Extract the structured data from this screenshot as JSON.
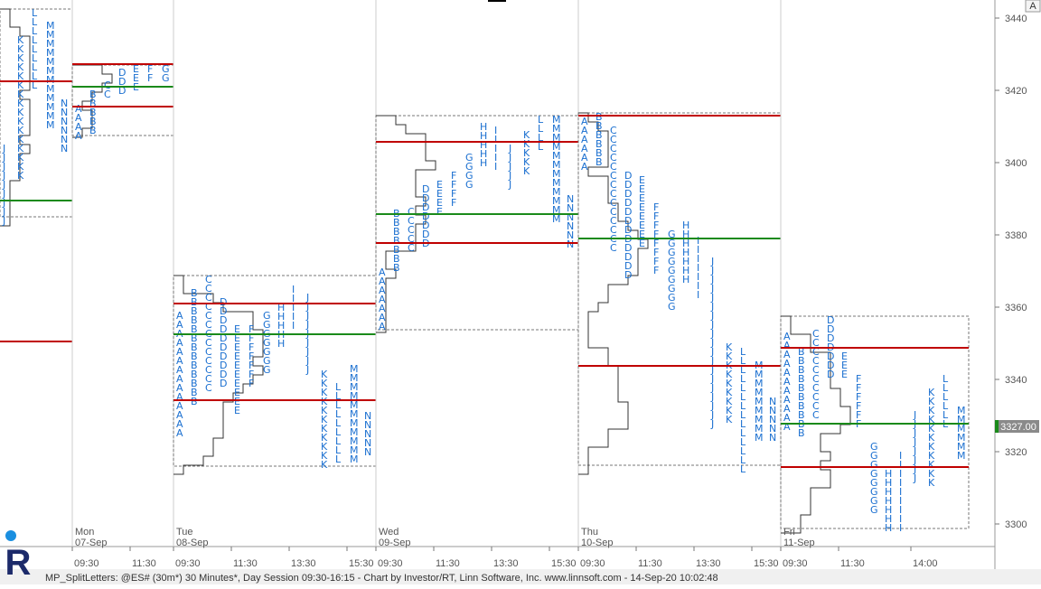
{
  "chart_data": {
    "type": "market-profile",
    "ylim": [
      3293.75,
      3445
    ],
    "yticks": [
      3300,
      3320,
      3340,
      3360,
      3380,
      3400,
      3420,
      3440
    ],
    "last_price": {
      "value": 3327,
      "label": "3327.00"
    },
    "letter_color": "#1a6fd0",
    "value_area_color": "#c00000",
    "poc_color": "#1a8a1a",
    "button": "A",
    "logo": "R",
    "footer": "MP_SplitLetters: @ES# (30m*) 30 Minutes*, Day Session 09:30-16:15 - Chart by Investor/RT, Linn Software, Inc. www.linnsoft.com - 14-Sep-20 10:02:48",
    "days": [
      {
        "letters": [
          {
            "letter": "J",
            "high": 3405,
            "low": 3385
          },
          {
            "letter": "K",
            "high": 3435,
            "low": 3397.5
          },
          {
            "letter": "L",
            "high": 3442.5,
            "low": 3421
          },
          {
            "letter": "M",
            "high": 3439,
            "low": 3410
          },
          {
            "letter": "N",
            "high": 3417.5,
            "low": 3405
          }
        ],
        "vah": 3422.5,
        "poc": 3389.5,
        "val": 3350.5
      },
      {
        "day": "Mon",
        "date": "07-Sep",
        "times": [
          "09:30",
          "11:30"
        ],
        "letters": [
          {
            "letter": "A",
            "high": 3416,
            "low": 3407.5
          },
          {
            "letter": "B",
            "high": 3420,
            "low": 3410
          },
          {
            "letter": "C",
            "high": 3422.5,
            "low": 3419
          },
          {
            "letter": "D",
            "high": 3426,
            "low": 3420
          },
          {
            "letter": "E",
            "high": 3427,
            "low": 3421
          },
          {
            "letter": "F",
            "high": 3427,
            "low": 3424
          },
          {
            "letter": "G",
            "high": 3427,
            "low": 3422.5
          }
        ],
        "vah": 3427.25,
        "poc": 3421,
        "val": 3415.5
      },
      {
        "day": "Tue",
        "date": "08-Sep",
        "times": [
          "09:30",
          "11:30",
          "13:30",
          "15:30"
        ],
        "letters": [
          {
            "letter": "A",
            "high": 3358.75,
            "low": 3326.25
          },
          {
            "letter": "B",
            "high": 3365,
            "low": 3335
          },
          {
            "letter": "C",
            "high": 3368.75,
            "low": 3338.75
          },
          {
            "letter": "D",
            "high": 3362.5,
            "low": 3340
          },
          {
            "letter": "E",
            "high": 3355,
            "low": 3331.25
          },
          {
            "letter": "F",
            "high": 3355,
            "low": 3340
          },
          {
            "letter": "G",
            "high": 3358.75,
            "low": 3343.75
          },
          {
            "letter": "H",
            "high": 3361,
            "low": 3348.75
          },
          {
            "letter": "I",
            "high": 3366,
            "low": 3355
          },
          {
            "letter": "J",
            "high": 3363.75,
            "low": 3342.5
          },
          {
            "letter": "K",
            "high": 3342.5,
            "low": 3316
          },
          {
            "letter": "L",
            "high": 3339,
            "low": 3317.5
          },
          {
            "letter": "M",
            "high": 3344,
            "low": 3317.5
          },
          {
            "letter": "N",
            "high": 3331,
            "low": 3321
          }
        ],
        "vah": 3361,
        "poc": 3352.5,
        "val": 3334.25
      },
      {
        "day": "Wed",
        "date": "09-Sep",
        "times": [
          "09:30",
          "11:30",
          "13:30",
          "15:30"
        ],
        "letters": [
          {
            "letter": "A",
            "high": 3370.75,
            "low": 3353.75
          },
          {
            "letter": "B",
            "high": 3387,
            "low": 3370
          },
          {
            "letter": "C",
            "high": 3387.5,
            "low": 3377.5
          },
          {
            "letter": "D",
            "high": 3393.75,
            "low": 3377.5
          },
          {
            "letter": "E",
            "high": 3395,
            "low": 3386.25
          },
          {
            "letter": "F",
            "high": 3397.5,
            "low": 3390
          },
          {
            "letter": "G",
            "high": 3402.5,
            "low": 3393.75
          },
          {
            "letter": "H",
            "high": 3411,
            "low": 3400
          },
          {
            "letter": "I",
            "high": 3410,
            "low": 3400
          },
          {
            "letter": "J",
            "high": 3405,
            "low": 3393.75
          },
          {
            "letter": "K",
            "high": 3408.75,
            "low": 3397.5
          },
          {
            "letter": "L",
            "high": 3413,
            "low": 3405
          },
          {
            "letter": "M",
            "high": 3413,
            "low": 3385
          },
          {
            "letter": "N",
            "high": 3391,
            "low": 3378
          }
        ],
        "vah": 3405.75,
        "poc": 3385.75,
        "val": 3377.75
      },
      {
        "day": "Thu",
        "date": "10-Sep",
        "times": [
          "09:30",
          "11:30",
          "13:30",
          "15:30"
        ],
        "letters": [
          {
            "letter": "A",
            "high": 3412.5,
            "low": 3400
          },
          {
            "letter": "B",
            "high": 3413.75,
            "low": 3400.5
          },
          {
            "letter": "C",
            "high": 3410,
            "low": 3375.5
          },
          {
            "letter": "D",
            "high": 3397.5,
            "low": 3368
          },
          {
            "letter": "E",
            "high": 3396.25,
            "low": 3378.75
          },
          {
            "letter": "F",
            "high": 3388.75,
            "low": 3370
          },
          {
            "letter": "G",
            "high": 3381.25,
            "low": 3360
          },
          {
            "letter": "H",
            "high": 3383.75,
            "low": 3368.75
          },
          {
            "letter": "I",
            "high": 3379.5,
            "low": 3362.5
          },
          {
            "letter": "J",
            "high": 3373.75,
            "low": 3328.75
          },
          {
            "letter": "K",
            "high": 3350,
            "low": 3328.75
          },
          {
            "letter": "L",
            "high": 3348.75,
            "low": 3316.25
          },
          {
            "letter": "M",
            "high": 3345,
            "low": 3323.75
          },
          {
            "letter": "N",
            "high": 3335,
            "low": 3323.75
          }
        ],
        "vah": 3413,
        "poc": 3379,
        "val": 3343.75
      },
      {
        "day": "Fri",
        "date": "11-Sep",
        "times": [
          "09:30",
          "11:30",
          "14:00"
        ],
        "letters": [
          {
            "letter": "A",
            "high": 3353,
            "low": 3327.5
          },
          {
            "letter": "B",
            "high": 3348.75,
            "low": 3324.25
          },
          {
            "letter": "C",
            "high": 3353.75,
            "low": 3331.25
          },
          {
            "letter": "D",
            "high": 3357.5,
            "low": 3341.25
          },
          {
            "letter": "E",
            "high": 3347.5,
            "low": 3340.5
          },
          {
            "letter": "F",
            "high": 3341.25,
            "low": 3328.75
          },
          {
            "letter": "G",
            "high": 3322.5,
            "low": 3303.75
          },
          {
            "letter": "H",
            "high": 3315,
            "low": 3298.75
          },
          {
            "letter": "I",
            "high": 3320,
            "low": 3300
          },
          {
            "letter": "J",
            "high": 3331.25,
            "low": 3312.5
          },
          {
            "letter": "K",
            "high": 3337.5,
            "low": 3312.5
          },
          {
            "letter": "L",
            "high": 3341.25,
            "low": 3327.5
          },
          {
            "letter": "M",
            "high": 3332.5,
            "low": 3320
          }
        ],
        "vah": 3348.75,
        "poc": 3327.75,
        "val": 3315.75
      }
    ]
  }
}
